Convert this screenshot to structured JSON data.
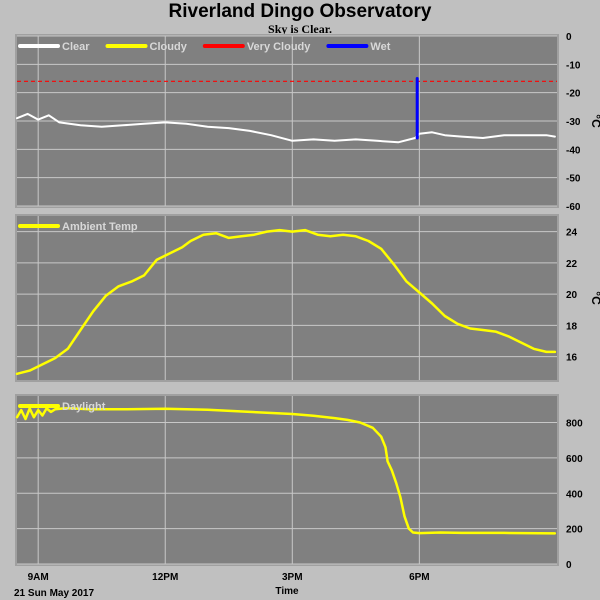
{
  "title": "Riverland Dingo Observatory",
  "subtitle": "Sky is Clear.",
  "footer": {
    "date": "21 Sun May 2017",
    "xlabel": "Time"
  },
  "colors": {
    "background": "#c0c0c0",
    "plot_bg": "#808080",
    "grid": "#c8c8c8",
    "clear": "#ffffff",
    "cloudy": "#ffff00",
    "very_cloudy": "#ff0000",
    "wet": "#0000ff"
  },
  "chart_data": [
    {
      "type": "line",
      "panel": "sky",
      "legend": [
        "Clear",
        "Cloudy",
        "Very Cloudy",
        "Wet"
      ],
      "legend_placement": "top-left",
      "ylim": [
        -60,
        0
      ],
      "yticks": [
        0,
        -10,
        -20,
        -30,
        -40,
        -50,
        -60
      ],
      "yunit": "°C",
      "grid": true,
      "threshold": {
        "name": "Very Cloudy",
        "value": -16
      },
      "series": [
        {
          "name": "Clear",
          "x": [
            8.5,
            8.75,
            9.0,
            9.25,
            9.5,
            10.0,
            10.5,
            11.0,
            11.5,
            12.0,
            12.5,
            13.0,
            13.5,
            14.0,
            14.5,
            15.0,
            15.5,
            16.0,
            16.5,
            17.0,
            17.5,
            17.9,
            18.0,
            18.3,
            18.6,
            19.0,
            19.5,
            20.0,
            20.5,
            21.0,
            21.2
          ],
          "y": [
            -29.0,
            -27.5,
            -29.5,
            -28.0,
            -30.5,
            -31.5,
            -32.0,
            -31.5,
            -31.0,
            -30.5,
            -31.0,
            -32.0,
            -32.5,
            -33.5,
            -35.0,
            -37.0,
            -36.5,
            -37.0,
            -36.5,
            -37.0,
            -37.5,
            -36.0,
            -34.5,
            -34.0,
            -35.0,
            -35.5,
            -36.0,
            -35.0,
            -35.0,
            -35.0,
            -35.5
          ]
        },
        {
          "name": "Wet",
          "x": [
            17.95,
            17.95
          ],
          "y": [
            -36,
            -15
          ]
        }
      ]
    },
    {
      "type": "line",
      "panel": "ambient",
      "legend": [
        "Ambient Temp"
      ],
      "legend_placement": "top-left",
      "ylim": [
        14.5,
        25.0
      ],
      "yticks": [
        16,
        18,
        20,
        22,
        24
      ],
      "yunit": "°C",
      "grid": true,
      "series": [
        {
          "name": "Ambient Temp",
          "x": [
            8.5,
            8.8,
            9.1,
            9.4,
            9.7,
            10.0,
            10.3,
            10.6,
            10.9,
            11.2,
            11.5,
            11.8,
            12.1,
            12.4,
            12.6,
            12.9,
            13.2,
            13.5,
            13.8,
            14.1,
            14.4,
            14.7,
            15.0,
            15.3,
            15.6,
            15.9,
            16.2,
            16.5,
            16.8,
            17.1,
            17.4,
            17.7,
            18.0,
            18.3,
            18.6,
            18.9,
            19.2,
            19.5,
            19.8,
            20.1,
            20.4,
            20.7,
            21.0,
            21.2
          ],
          "y": [
            14.9,
            15.1,
            15.5,
            15.9,
            16.5,
            17.7,
            18.9,
            19.9,
            20.5,
            20.8,
            21.2,
            22.2,
            22.6,
            23.0,
            23.4,
            23.8,
            23.9,
            23.6,
            23.7,
            23.8,
            24.0,
            24.1,
            24.0,
            24.1,
            23.8,
            23.7,
            23.8,
            23.7,
            23.4,
            22.9,
            21.9,
            20.8,
            20.1,
            19.4,
            18.6,
            18.1,
            17.8,
            17.7,
            17.6,
            17.3,
            16.9,
            16.5,
            16.3,
            16.3
          ]
        }
      ]
    },
    {
      "type": "line",
      "panel": "daylight",
      "legend": [
        "Daylight"
      ],
      "legend_placement": "top-left",
      "ylim": [
        0,
        950
      ],
      "yticks": [
        0,
        200,
        400,
        600,
        800
      ],
      "grid": true,
      "series": [
        {
          "name": "Daylight",
          "x": [
            8.5,
            8.6,
            8.7,
            8.8,
            8.9,
            9.0,
            9.1,
            9.2,
            9.3,
            9.4,
            9.6,
            9.8,
            10.2,
            11.0,
            12.0,
            13.0,
            14.0,
            15.0,
            15.5,
            16.0,
            16.3,
            16.6,
            16.9,
            17.1,
            17.2,
            17.25,
            17.35,
            17.45,
            17.55,
            17.65,
            17.75,
            17.85,
            18.0,
            18.5,
            19.0,
            20.0,
            21.2
          ],
          "y": [
            830,
            870,
            820,
            880,
            830,
            870,
            840,
            880,
            860,
            875,
            880,
            880,
            875,
            875,
            878,
            872,
            860,
            848,
            838,
            825,
            815,
            800,
            770,
            720,
            660,
            580,
            530,
            460,
            380,
            270,
            200,
            178,
            175,
            178,
            176,
            176,
            173
          ]
        }
      ]
    }
  ],
  "x_axis": {
    "ticks": [
      {
        "x": 9,
        "label": "9AM"
      },
      {
        "x": 12,
        "label": "12PM"
      },
      {
        "x": 15,
        "label": "3PM"
      },
      {
        "x": 18,
        "label": "6PM"
      }
    ],
    "range": [
      8.5,
      21.25
    ]
  }
}
